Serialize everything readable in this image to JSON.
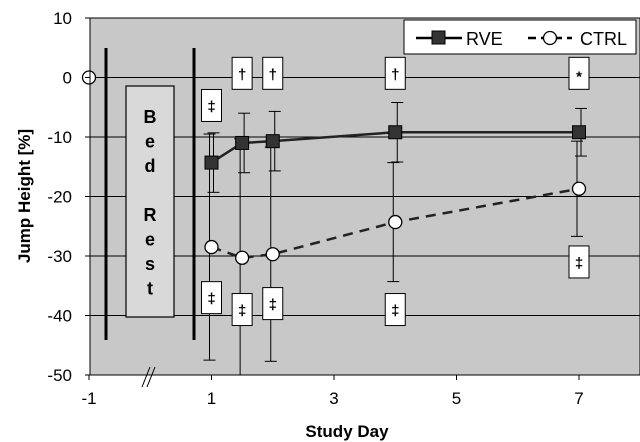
{
  "chart_data": {
    "type": "line",
    "xlabel": "Study Day",
    "ylabel": "Jump Height [%]",
    "xlim": [
      -1,
      8
    ],
    "ylim": [
      -50,
      10
    ],
    "x_ticks": [
      "-1",
      "1",
      "3",
      "5",
      "7"
    ],
    "x_tick_values": [
      -1,
      1,
      3,
      5,
      7
    ],
    "y_ticks": [
      "10",
      "0",
      "-10",
      "-20",
      "-30",
      "-40",
      "-50"
    ],
    "y_tick_values": [
      10,
      0,
      -10,
      -20,
      -30,
      -40,
      -50
    ],
    "grid": "horizontal",
    "axis_break": "x",
    "legend_position": "top-right",
    "plot_background": "#c8c8c8",
    "series": [
      {
        "name": "RVE",
        "marker": "filled-square",
        "line": "solid",
        "color": "#222222",
        "x": [
          1,
          1.5,
          2,
          4,
          7
        ],
        "y": [
          -14.3,
          -11,
          -10.7,
          -9.2,
          -9.2
        ],
        "err": [
          5,
          5,
          5,
          5,
          4
        ]
      },
      {
        "name": "CTRL",
        "marker": "open-circle",
        "line": "dashed",
        "color": "#222222",
        "x": [
          -1,
          1,
          1.5,
          2,
          4,
          7
        ],
        "y": [
          0,
          -28.5,
          -30.3,
          -29.7,
          -24.3,
          -18.7
        ],
        "err": [
          0,
          19,
          20,
          18,
          10,
          8
        ]
      }
    ],
    "bed_rest_label": [
      "B",
      "e",
      "d",
      "",
      "R",
      "e",
      "s",
      "t"
    ],
    "annotations": [
      {
        "symbol": "‡",
        "x": 1,
        "y": -4.7
      },
      {
        "symbol": "†",
        "x": 1.5,
        "y": 0.7
      },
      {
        "symbol": "†",
        "x": 2,
        "y": 0.7
      },
      {
        "symbol": "†",
        "x": 4,
        "y": 0.7
      },
      {
        "symbol": "*",
        "x": 7,
        "y": 0.7
      },
      {
        "symbol": "‡",
        "x": 1,
        "y": -37
      },
      {
        "symbol": "‡",
        "x": 1.5,
        "y": -39
      },
      {
        "symbol": "‡",
        "x": 2,
        "y": -38
      },
      {
        "symbol": "‡",
        "x": 4,
        "y": -39
      },
      {
        "symbol": "‡",
        "x": 7,
        "y": -31
      }
    ]
  }
}
